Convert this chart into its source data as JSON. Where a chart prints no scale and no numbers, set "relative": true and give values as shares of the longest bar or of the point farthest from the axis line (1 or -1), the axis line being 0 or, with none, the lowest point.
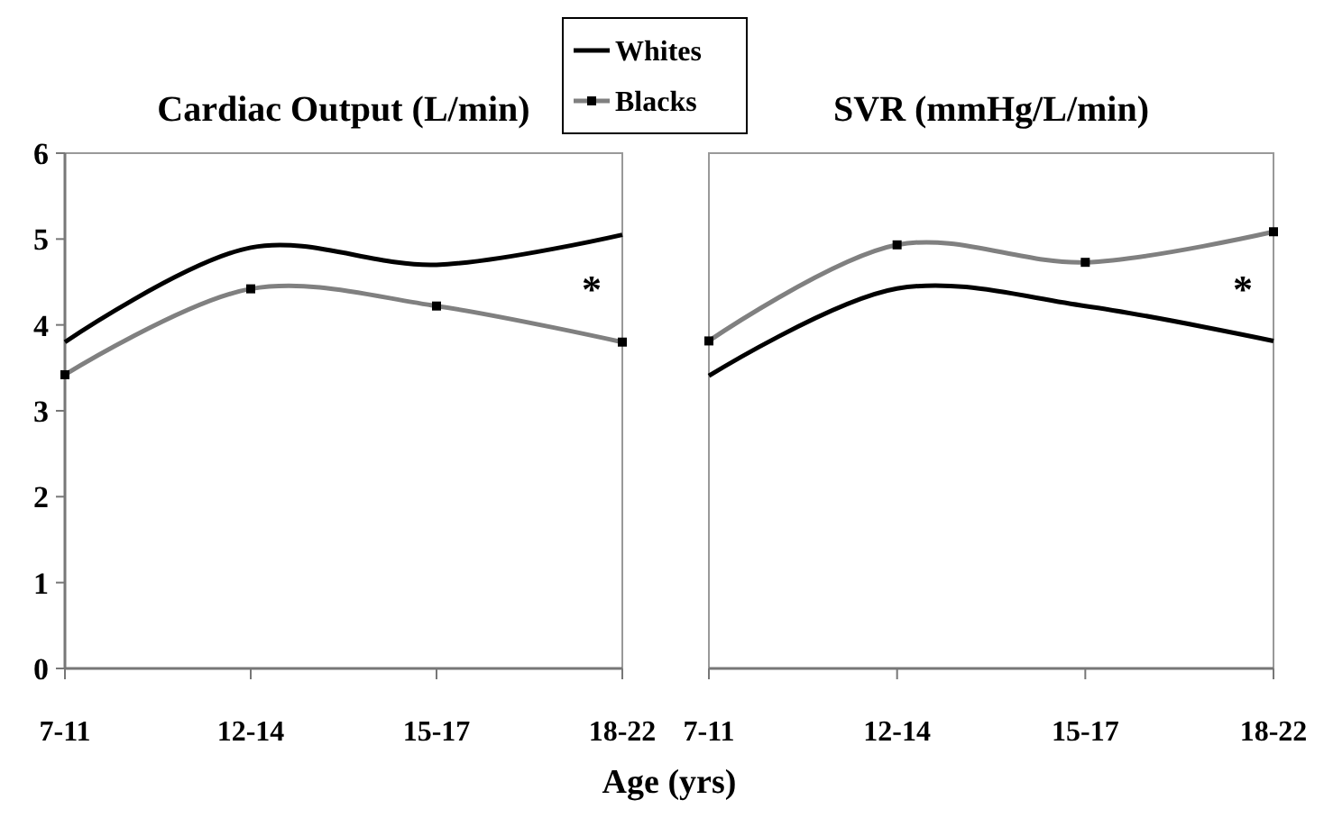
{
  "chart_data": [
    {
      "type": "line",
      "title": "Cardiac Output (L/min)",
      "xlabel": "Age (yrs)",
      "categories": [
        "7-11",
        "12-14",
        "15-17",
        "18-22"
      ],
      "ylim": [
        0,
        6
      ],
      "yticks": [
        0,
        1,
        2,
        3,
        4,
        5,
        6
      ],
      "legend": "top right",
      "grid": false,
      "annotations": [
        "*"
      ],
      "series": [
        {
          "name": "Whites",
          "color": "#000000",
          "marker": "none",
          "values": [
            3.8,
            4.9,
            4.7,
            5.05
          ]
        },
        {
          "name": "Blacks",
          "color": "#808080",
          "marker": "square",
          "values": [
            3.42,
            4.42,
            4.22,
            3.8
          ]
        }
      ]
    },
    {
      "type": "line",
      "title": "SVR (mmHg/L/min)",
      "categories": [
        "7-11",
        "12-14",
        "15-17",
        "18-22"
      ],
      "relative": true,
      "grid": false,
      "annotations": [
        "*"
      ],
      "series": [
        {
          "color": "#000000",
          "marker": "none",
          "values": [
            0.67,
            0.87,
            0.83,
            0.75
          ]
        },
        {
          "color": "#808080",
          "marker": "square",
          "values": [
            0.75,
            0.97,
            0.93,
            1
          ]
        }
      ]
    }
  ]
}
